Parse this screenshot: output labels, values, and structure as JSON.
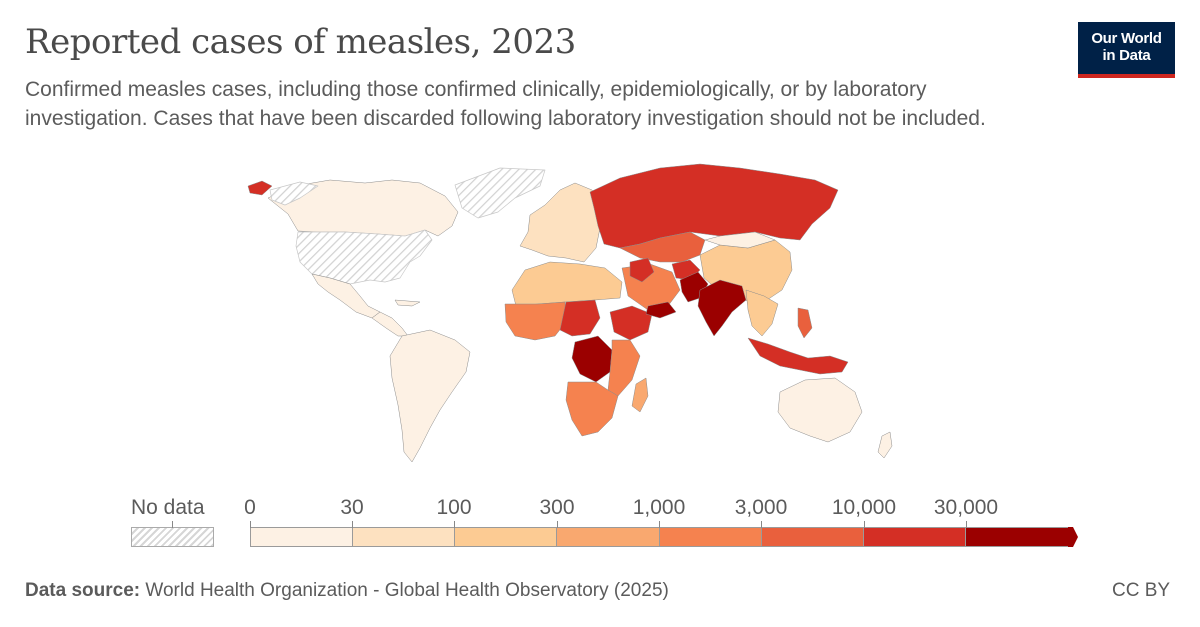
{
  "header": {
    "title": "Reported cases of measles, 2023",
    "subtitle": "Confirmed measles cases, including those confirmed clinically, epidemiologically, or by laboratory investigation. Cases that have been discarded following laboratory investigation should not be included."
  },
  "logo": {
    "line1": "Our World",
    "line2": "in Data"
  },
  "legend": {
    "no_data_label": "No data",
    "ticks": [
      "0",
      "30",
      "100",
      "300",
      "1,000",
      "3,000",
      "10,000",
      "30,000"
    ],
    "colors": [
      "#fdf1e4",
      "#fde1c0",
      "#fccb93",
      "#f9a86f",
      "#f5824f",
      "#e9603d",
      "#d42f25",
      "#9b0000"
    ],
    "no_data_color": "#dcdcdc"
  },
  "map": {
    "regions": [
      {
        "name": "Greenland",
        "bin": -1
      },
      {
        "name": "Canada",
        "bin": 0
      },
      {
        "name": "United States",
        "bin": -1
      },
      {
        "name": "Mexico",
        "bin": 0
      },
      {
        "name": "Central America",
        "bin": 0
      },
      {
        "name": "South America",
        "bin": 0
      },
      {
        "name": "Iceland",
        "bin": 6
      },
      {
        "name": "Western Europe",
        "bin": 1
      },
      {
        "name": "Russia",
        "bin": 6
      },
      {
        "name": "Kazakhstan",
        "bin": 5
      },
      {
        "name": "China",
        "bin": 2
      },
      {
        "name": "Mongolia",
        "bin": 0
      },
      {
        "name": "North Africa",
        "bin": 2
      },
      {
        "name": "West Africa",
        "bin": 4
      },
      {
        "name": "Nigeria",
        "bin": 6
      },
      {
        "name": "Ethiopia",
        "bin": 6
      },
      {
        "name": "DR Congo",
        "bin": 7
      },
      {
        "name": "East Africa",
        "bin": 4
      },
      {
        "name": "Southern Africa",
        "bin": 4
      },
      {
        "name": "Madagascar",
        "bin": 3
      },
      {
        "name": "Middle East",
        "bin": 4
      },
      {
        "name": "Iraq",
        "bin": 6
      },
      {
        "name": "Yemen",
        "bin": 7
      },
      {
        "name": "Afghanistan",
        "bin": 6
      },
      {
        "name": "Pakistan",
        "bin": 7
      },
      {
        "name": "India",
        "bin": 7
      },
      {
        "name": "Southeast Asia",
        "bin": 2
      },
      {
        "name": "Indonesia",
        "bin": 6
      },
      {
        "name": "Philippines",
        "bin": 5
      },
      {
        "name": "Australia",
        "bin": 0
      },
      {
        "name": "New Zealand",
        "bin": 0
      }
    ]
  },
  "footer": {
    "source_label": "Data source:",
    "source_text": " World Health Organization - Global Health Observatory (2025)",
    "license": "CC BY"
  }
}
